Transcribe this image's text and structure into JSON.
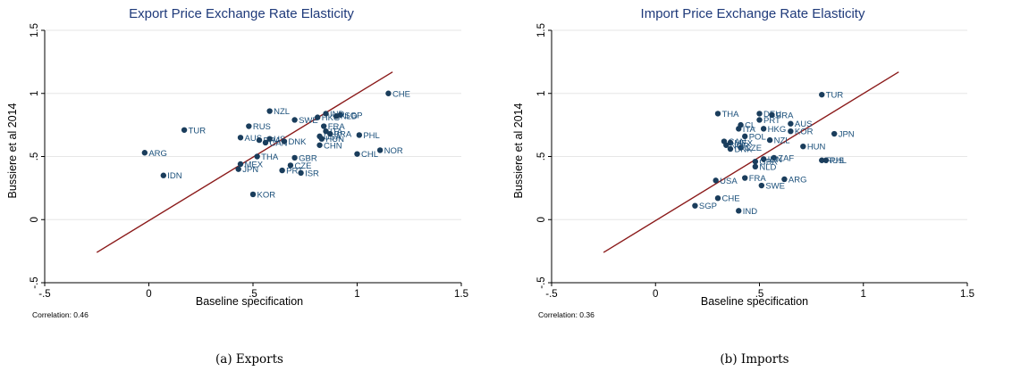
{
  "chart_data": [
    {
      "type": "scatter",
      "title": "Export Price Exchange Rate Elasticity",
      "xlabel": "Baseline specification",
      "ylabel": "Bussiere et al 2014",
      "xlim": [
        -0.5,
        1.5
      ],
      "ylim": [
        -0.5,
        1.5
      ],
      "xticks": [
        "-.5",
        "0",
        ".5",
        "1",
        "1.5"
      ],
      "yticks": [
        "-.5",
        "0",
        ".5",
        "1",
        "1.5"
      ],
      "grid": true,
      "fit_line": {
        "x": [
          -0.25,
          1.17
        ],
        "y": [
          -0.26,
          1.17
        ]
      },
      "correlation": "Correlation: 0.46",
      "caption": "(a) Exports",
      "points": [
        {
          "label": "CHE",
          "x": 1.15,
          "y": 1.0
        },
        {
          "label": "NZL",
          "x": 0.58,
          "y": 0.86
        },
        {
          "label": "SWE",
          "x": 0.7,
          "y": 0.79
        },
        {
          "label": "HKG",
          "x": 0.81,
          "y": 0.81
        },
        {
          "label": "IND",
          "x": 0.85,
          "y": 0.84
        },
        {
          "label": "SGP",
          "x": 0.92,
          "y": 0.83
        },
        {
          "label": "NLD",
          "x": 0.9,
          "y": 0.82
        },
        {
          "label": "FRA",
          "x": 0.84,
          "y": 0.74
        },
        {
          "label": "ITA",
          "x": 0.85,
          "y": 0.7
        },
        {
          "label": "USA",
          "x": 0.82,
          "y": 0.66
        },
        {
          "label": "BRA",
          "x": 0.87,
          "y": 0.68
        },
        {
          "label": "HUN",
          "x": 0.83,
          "y": 0.64
        },
        {
          "label": "CHN",
          "x": 0.82,
          "y": 0.59
        },
        {
          "label": "PHL",
          "x": 1.01,
          "y": 0.67
        },
        {
          "label": "NOR",
          "x": 1.11,
          "y": 0.55
        },
        {
          "label": "CHL",
          "x": 1.0,
          "y": 0.52
        },
        {
          "label": "TUR",
          "x": 0.17,
          "y": 0.71
        },
        {
          "label": "RUS",
          "x": 0.48,
          "y": 0.74
        },
        {
          "label": "AUS",
          "x": 0.44,
          "y": 0.65
        },
        {
          "label": "BRA",
          "x": 0.53,
          "y": 0.63
        },
        {
          "label": "CAN",
          "x": 0.56,
          "y": 0.61
        },
        {
          "label": "US",
          "x": 0.58,
          "y": 0.64
        },
        {
          "label": "DNK",
          "x": 0.65,
          "y": 0.62
        },
        {
          "label": "ARG",
          "x": -0.02,
          "y": 0.53
        },
        {
          "label": "THA",
          "x": 0.52,
          "y": 0.5
        },
        {
          "label": "GBR",
          "x": 0.7,
          "y": 0.49
        },
        {
          "label": "MEX",
          "x": 0.44,
          "y": 0.44
        },
        {
          "label": "CZE",
          "x": 0.68,
          "y": 0.43
        },
        {
          "label": "JPN",
          "x": 0.43,
          "y": 0.4
        },
        {
          "label": "PRT",
          "x": 0.64,
          "y": 0.39
        },
        {
          "label": "ISR",
          "x": 0.73,
          "y": 0.37
        },
        {
          "label": "IDN",
          "x": 0.07,
          "y": 0.35
        },
        {
          "label": "KOR",
          "x": 0.5,
          "y": 0.2
        }
      ]
    },
    {
      "type": "scatter",
      "title": "Import Price Exchange Rate Elasticity",
      "xlabel": "Baseline specification",
      "ylabel": "Bussiere et al 2014",
      "xlim": [
        -0.5,
        1.5
      ],
      "ylim": [
        -0.5,
        1.5
      ],
      "xticks": [
        "-.5",
        "0",
        ".5",
        "1",
        "1.5"
      ],
      "yticks": [
        "-.5",
        "0",
        ".5",
        "1",
        "1.5"
      ],
      "grid": true,
      "fit_line": {
        "x": [
          -0.25,
          1.17
        ],
        "y": [
          -0.26,
          1.17
        ]
      },
      "correlation": "Correlation: 0.36",
      "caption": "(b) Imports",
      "points": [
        {
          "label": "TUR",
          "x": 0.8,
          "y": 0.99
        },
        {
          "label": "THA",
          "x": 0.3,
          "y": 0.84
        },
        {
          "label": "DEU",
          "x": 0.5,
          "y": 0.84
        },
        {
          "label": "BRA",
          "x": 0.56,
          "y": 0.83
        },
        {
          "label": "PRT",
          "x": 0.5,
          "y": 0.79
        },
        {
          "label": "AUS",
          "x": 0.65,
          "y": 0.76
        },
        {
          "label": "CL",
          "x": 0.41,
          "y": 0.75
        },
        {
          "label": "ITA",
          "x": 0.4,
          "y": 0.72
        },
        {
          "label": "HKG",
          "x": 0.52,
          "y": 0.72
        },
        {
          "label": "KOR",
          "x": 0.65,
          "y": 0.7
        },
        {
          "label": "JPN",
          "x": 0.86,
          "y": 0.68
        },
        {
          "label": "POL",
          "x": 0.43,
          "y": 0.66
        },
        {
          "label": "NZL",
          "x": 0.55,
          "y": 0.63
        },
        {
          "label": "HUN",
          "x": 0.71,
          "y": 0.58
        },
        {
          "label": "CAN",
          "x": 0.33,
          "y": 0.62
        },
        {
          "label": "MEX",
          "x": 0.36,
          "y": 0.61
        },
        {
          "label": "CZE",
          "x": 0.41,
          "y": 0.57
        },
        {
          "label": "NOR",
          "x": 0.34,
          "y": 0.59
        },
        {
          "label": "DNK",
          "x": 0.36,
          "y": 0.56
        },
        {
          "label": "ZAF",
          "x": 0.57,
          "y": 0.49
        },
        {
          "label": "IDN",
          "x": 0.52,
          "y": 0.48
        },
        {
          "label": "RUS",
          "x": 0.8,
          "y": 0.47
        },
        {
          "label": "PHL",
          "x": 0.82,
          "y": 0.47
        },
        {
          "label": "GBR",
          "x": 0.48,
          "y": 0.46
        },
        {
          "label": "NLD",
          "x": 0.48,
          "y": 0.42
        },
        {
          "label": "USA",
          "x": 0.29,
          "y": 0.31
        },
        {
          "label": "FRA",
          "x": 0.43,
          "y": 0.33
        },
        {
          "label": "ARG",
          "x": 0.62,
          "y": 0.32
        },
        {
          "label": "SWE",
          "x": 0.51,
          "y": 0.27
        },
        {
          "label": "CHE",
          "x": 0.3,
          "y": 0.17
        },
        {
          "label": "SGP",
          "x": 0.19,
          "y": 0.11
        },
        {
          "label": "IND",
          "x": 0.4,
          "y": 0.07
        }
      ]
    }
  ]
}
